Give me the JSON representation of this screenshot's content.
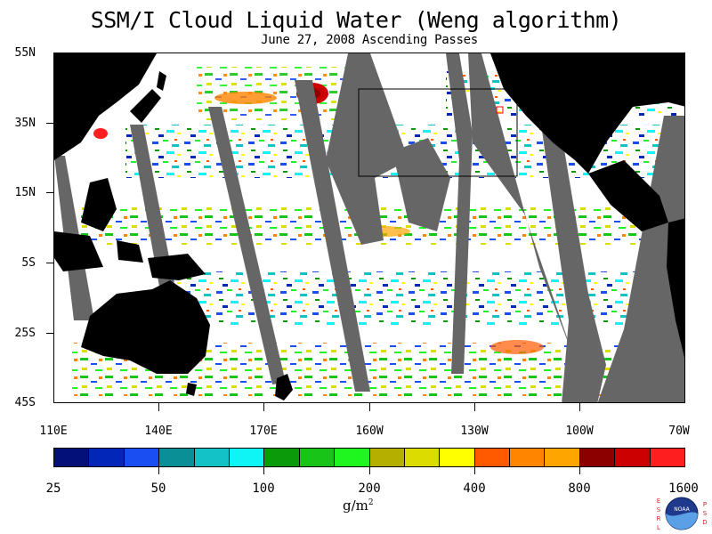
{
  "title": "SSM/I Cloud Liquid Water (Weng algorithm)",
  "subtitle": "June 27, 2008  Ascending Passes",
  "lat_labels": [
    "55N",
    "35N",
    "15N",
    "5S",
    "25S",
    "45S"
  ],
  "lon_labels": [
    "110E",
    "140E",
    "170E",
    "160W",
    "130W",
    "100W",
    "70W"
  ],
  "colorbar": {
    "colors": [
      "#03107a",
      "#0226b8",
      "#1a4ef2",
      "#0b8f96",
      "#12c2c4",
      "#0ff5f5",
      "#0a9a0a",
      "#17c417",
      "#1ff51f",
      "#b5b000",
      "#dcdc00",
      "#ffff00",
      "#ff5a00",
      "#ff8400",
      "#ffa500",
      "#8c0000",
      "#cc0000",
      "#ff1f1f"
    ],
    "labels": [
      "25",
      "50",
      "100",
      "200",
      "400",
      "800",
      "1600"
    ],
    "units": "g/m",
    "units_sup": "2"
  },
  "logo": {
    "left_letters": "ESRL",
    "right_letters": "PSD",
    "center": "NOAA"
  },
  "colors": {
    "land": "#000000",
    "no_data": "#666666",
    "ocean_clear": "#ffffff"
  }
}
